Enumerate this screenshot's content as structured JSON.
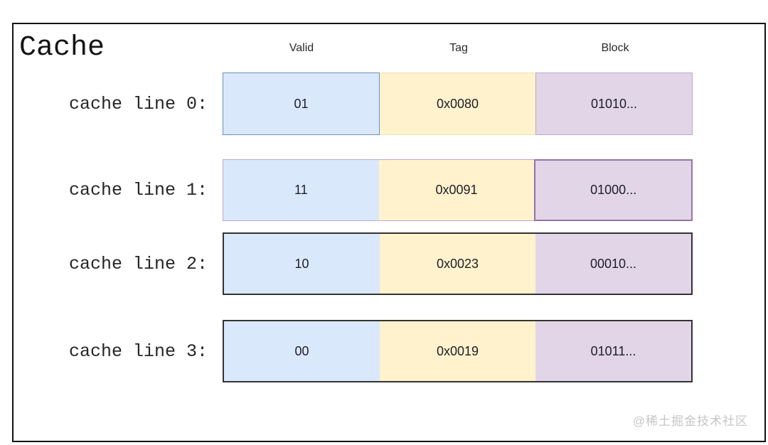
{
  "title": "Cache",
  "columns": [
    "Valid",
    "Tag",
    "Block"
  ],
  "rows": [
    {
      "label": "cache line 0:",
      "valid": "01",
      "tag": "0x0080",
      "block": "01010..."
    },
    {
      "label": "cache line 1:",
      "valid": "11",
      "tag": "0x0091",
      "block": "01000..."
    },
    {
      "label": "cache line 2:",
      "valid": "10",
      "tag": "0x0023",
      "block": "00010..."
    },
    {
      "label": "cache line 3:",
      "valid": "00",
      "tag": "0x0019",
      "block": "01011..."
    }
  ],
  "watermark": "@稀土掘金技术社区",
  "colors": {
    "valid_fill": "#dae8fc",
    "valid_border": "#6c8ebf",
    "tag_fill": "#fff2cc",
    "tag_border": "#d6b656",
    "block_fill": "#e1d5e7",
    "block_border": "#9673a6",
    "row_outline_dark": "#333333",
    "frame_border": "#141414",
    "watermark_color": "#c6c6c6"
  }
}
